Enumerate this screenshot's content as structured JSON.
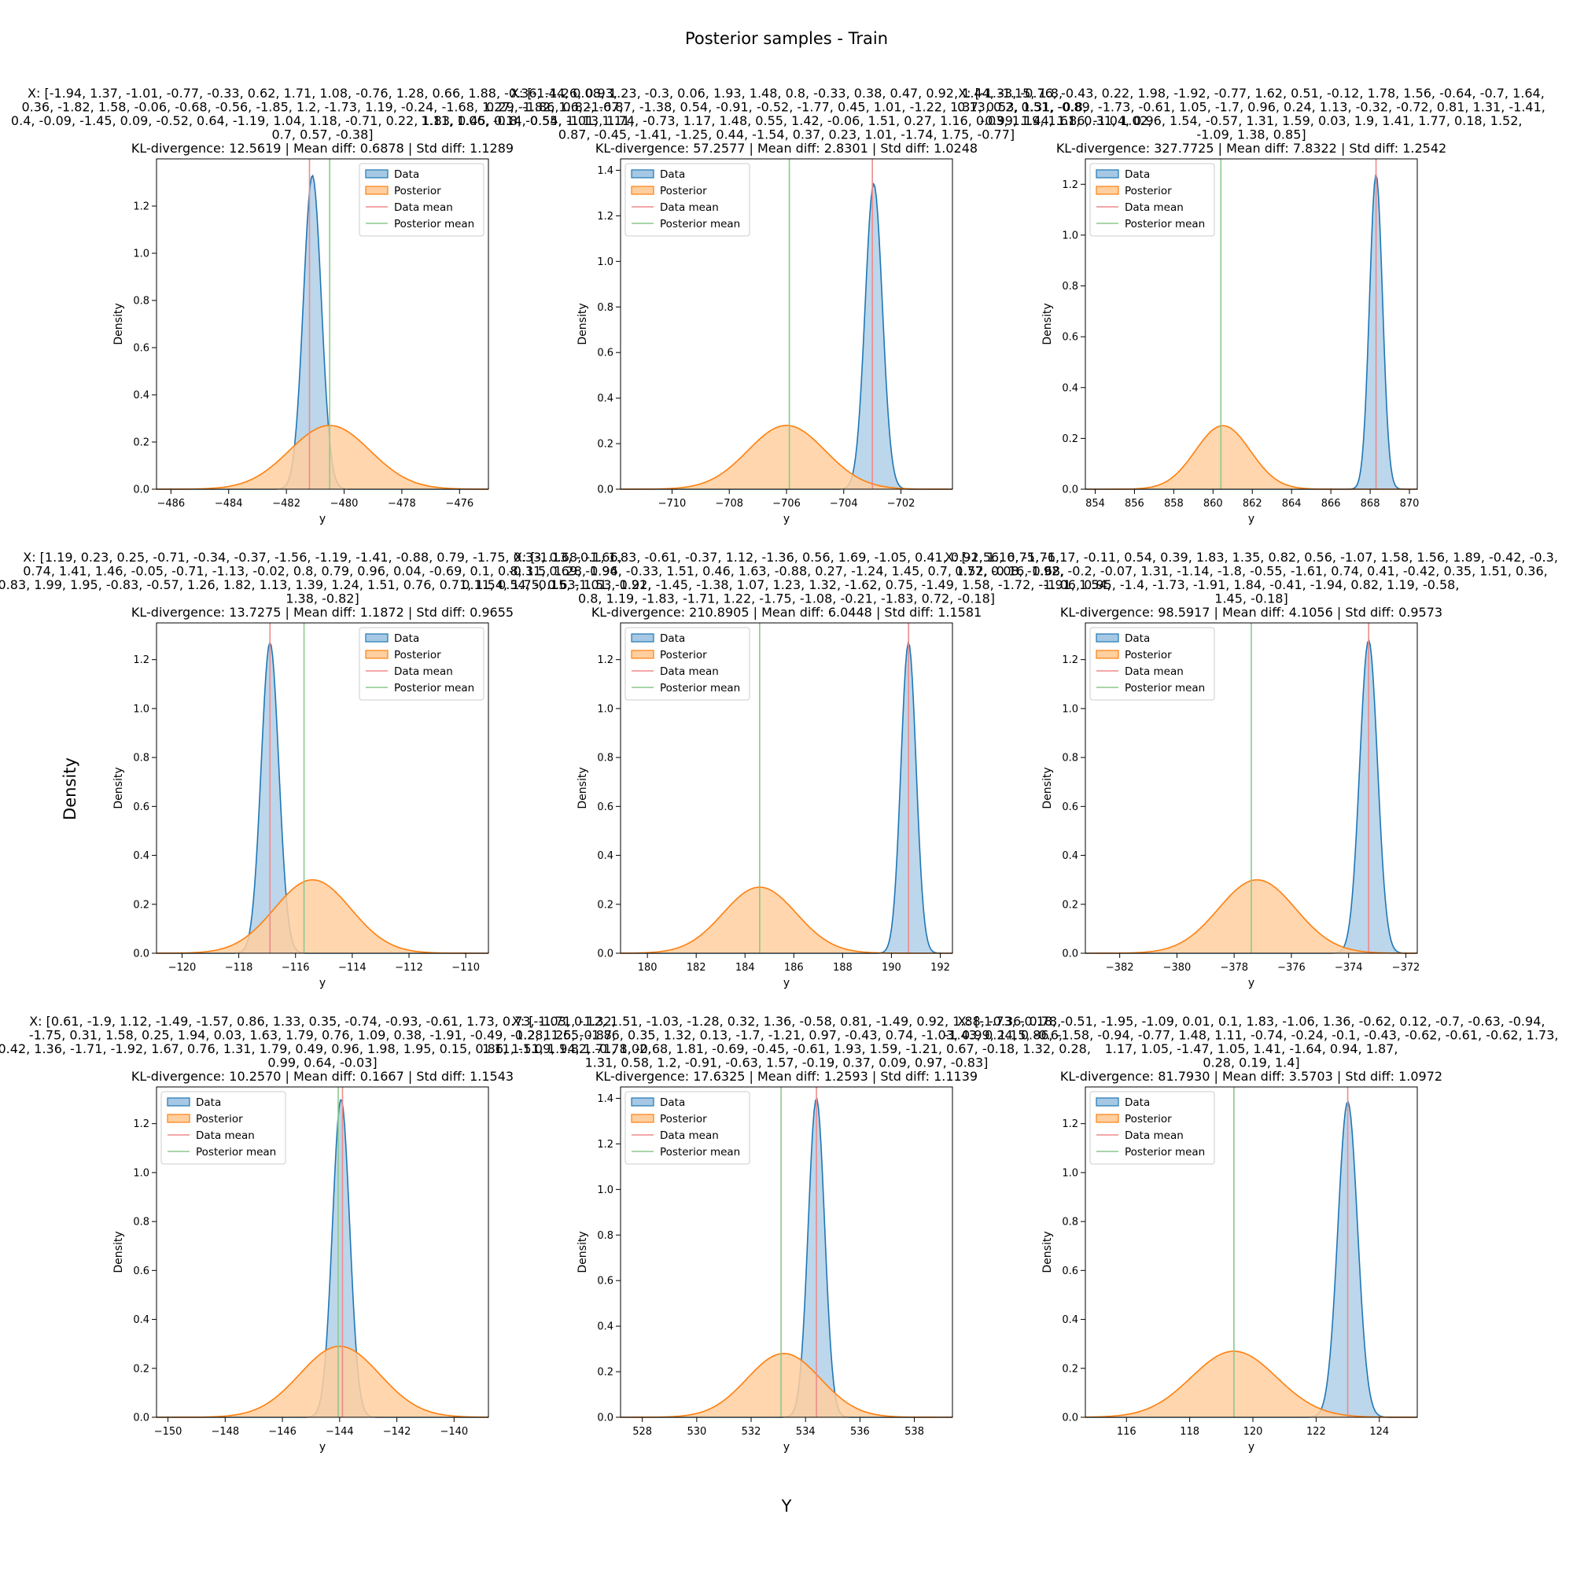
{
  "figure": {
    "suptitle": "Posterior samples - Train",
    "supxlabel": "Y",
    "supylabel": "Density"
  },
  "legend_labels": [
    "Data",
    "Posterior",
    "Data mean",
    "Posterior mean"
  ],
  "colors": {
    "data_line": "#1f77b4",
    "data_fill": "#a6c8e4",
    "posterior_line": "#ff7f0e",
    "posterior_fill": "#ffcf9f",
    "data_mean": "#ef8a8a",
    "posterior_mean": "#8cc98c"
  },
  "chart_data": [
    {
      "type": "area",
      "title_lines": [
        "X: [-1.94, 1.37, -1.01, -0.77, -0.33, 0.62, 1.71, 1.08, -0.76, 1.28, 0.66, 1.88, -0.36, -1.26, 0.93,",
        "0.36, -1.82, 1.58, -0.06, -0.68, -0.56, -1.85, 1.2, -1.73, 1.19, -0.24, -1.68, 1.27, -1.82, 1.6, -1.67,",
        "0.4, -0.09, -1.45, 0.09, -0.52, 0.64, -1.19, 1.04, 1.18, -0.71, 0.22, 1.83, 0.45, 0.14, 0.55, 1.01, 1.11,",
        "0.7, 0.57, -0.38]",
        "KL-divergence: 12.5619 | Mean diff: 0.6878 | Std diff: 1.1289"
      ],
      "xlabel": "y",
      "ylabel": "Density",
      "xlim": [
        -486.5,
        -475
      ],
      "ylim": [
        0,
        1.4
      ],
      "xticks": [
        -486,
        -484,
        -482,
        -480,
        -478,
        -476
      ],
      "yticks": [
        0.0,
        0.2,
        0.4,
        0.6,
        0.8,
        1.0,
        1.2
      ],
      "data_mean": -481.2,
      "posterior_mean": -480.5,
      "series": [
        {
          "name": "Data",
          "mu": -481.1,
          "sigma": 0.31,
          "peak": 1.33
        },
        {
          "name": "Posterior",
          "mu": -480.5,
          "sigma": 1.4,
          "peak": 0.27
        }
      ]
    },
    {
      "type": "area",
      "title_lines": [
        "X: [-1.44, 0.08, 1.23, -0.3, 0.06, 1.93, 1.48, 0.8, -0.33, 0.38, 0.47, 0.92, 1.44, -1.15, 1.8,",
        "0.29, -1.86, 0.82, -0.87, -1.38, 0.54, -0.91, -0.52, -1.77, 0.45, 1.01, -1.22, 1.37, 0.53, 1.31, -0.8,",
        "1.11, 1.06, -0.8, -0.54, -1.13, 1.74, -0.73, 1.17, 1.48, 0.55, 1.42, -0.06, 1.51, 0.27, 1.16, 0.03, 1.19, 1.61, 0.31, 1.02,",
        "0.87, -0.45, -1.41, -1.25, 0.44, -1.54, 0.37, 0.23, 1.01, -1.74, 1.75, -0.77]",
        "KL-divergence: 57.2577 | Mean diff: 2.8301 | Std diff: 1.0248"
      ],
      "xlabel": "y",
      "ylabel": "Density",
      "xlim": [
        -711.8,
        -700.2
      ],
      "ylim": [
        0,
        1.45
      ],
      "xticks": [
        -710,
        -708,
        -706,
        -704,
        -702
      ],
      "yticks": [
        0.0,
        0.2,
        0.4,
        0.6,
        0.8,
        1.0,
        1.2,
        1.4
      ],
      "data_mean": -703.0,
      "posterior_mean": -705.9,
      "series": [
        {
          "name": "Data",
          "mu": -702.95,
          "sigma": 0.3,
          "peak": 1.34
        },
        {
          "name": "Posterior",
          "mu": -706.0,
          "sigma": 1.35,
          "peak": 0.28
        }
      ]
    },
    {
      "type": "area",
      "title_lines": [
        "X: [-1.33, -0.76, -0.43, 0.22, 1.98, -1.92, -0.77, 1.62, 0.51, -0.12, 1.78, 1.56, -0.64, -0.7, 1.64,",
        "0.13, 0.2, 0.51, -0.89, -1.73, -0.61, 1.05, -1.7, 0.96, 0.24, 1.13, -0.32, -0.72, 0.81, 1.31, -1.41,",
        "-0.99, 1.44, 1.86, -1.04, 0.96, 1.54, -0.57, 1.31, 1.59, 0.03, 1.9, 1.41, 1.77, 0.18, 1.52,",
        "-1.09, 1.38, 0.85]",
        "KL-divergence: 327.7725 | Mean diff: 7.8322 | Std diff: 1.2542"
      ],
      "xlabel": "y",
      "ylabel": "Density",
      "xlim": [
        853.5,
        870.4
      ],
      "ylim": [
        0,
        1.3
      ],
      "xticks": [
        854,
        856,
        858,
        860,
        862,
        864,
        866,
        868,
        870
      ],
      "yticks": [
        0.0,
        0.2,
        0.4,
        0.6,
        0.8,
        1.0,
        1.2
      ],
      "data_mean": 868.3,
      "posterior_mean": 860.4,
      "series": [
        {
          "name": "Data",
          "mu": 868.3,
          "sigma": 0.33,
          "peak": 1.24
        },
        {
          "name": "Posterior",
          "mu": 860.5,
          "sigma": 1.4,
          "peak": 0.25
        }
      ]
    },
    {
      "type": "area",
      "title_lines": [
        "X: [1.19, 0.23, 0.25, -0.71, -0.34, -0.37, -1.56, -1.19, -1.41, -0.88, 0.79, -1.75, 0.33, 0.68, -1.66,",
        "0.74, 1.41, 1.46, -0.05, -0.71, -1.13, -0.02, 0.8, 0.79, 0.96, 0.04, -0.69, 0.1, 0.8, 1.5, 1.28, 0.94,",
        "-0.83, 1.99, 1.95, -0.83, -0.57, 1.26, 1.82, 1.13, 1.39, 1.24, 1.51, 0.76, 0.71, 1.54, 1.75, 0.63, 1.53, 0.21,",
        "1.38, -0.82]",
        "KL-divergence: 13.7275 | Mean diff: 1.1872 | Std diff: 0.9655"
      ],
      "xlabel": "y",
      "ylabel": "Density",
      "xlim": [
        -120.9,
        -109.2
      ],
      "ylim": [
        0,
        1.35
      ],
      "xticks": [
        -120,
        -118,
        -116,
        -114,
        -112,
        -110
      ],
      "yticks": [
        0.0,
        0.2,
        0.4,
        0.6,
        0.8,
        1.0,
        1.2
      ],
      "data_mean": -116.9,
      "posterior_mean": -115.7,
      "series": [
        {
          "name": "Data",
          "mu": -116.9,
          "sigma": 0.31,
          "peak": 1.27
        },
        {
          "name": "Posterior",
          "mu": -115.4,
          "sigma": 1.35,
          "peak": 0.3
        }
      ]
    },
    {
      "type": "area",
      "title_lines": [
        "X: [-1.13, -0.1, 1.83, -0.61, -0.37, 1.12, -1.36, 0.56, 1.69, -1.05, 0.41, 0.92, 1.16, -1.76,",
        "-0.31, 0.69, -1.96, -0.33, 1.51, 0.46, 1.63, -0.88, 0.27, -1.24, 1.45, 0.7, 1.52, -0.16, 0.68,",
        "0.11, 0.54, -0.15, -1.01, -1.92, -1.45, -1.38, 1.07, 1.23, 1.32, -1.62, 0.75, -1.49, 1.58, -1.72, -1.91, 1.54,",
        "0.8, 1.19, -1.83, -1.71, 1.22, -1.75, -1.08, -0.21, -1.83, 0.72, -0.18]",
        "KL-divergence: 210.8905 | Mean diff: 6.0448 | Std diff: 1.1581"
      ],
      "xlabel": "y",
      "ylabel": "Density",
      "xlim": [
        178.9,
        192.5
      ],
      "ylim": [
        0,
        1.35
      ],
      "xticks": [
        180,
        182,
        184,
        186,
        188,
        190,
        192
      ],
      "yticks": [
        0.0,
        0.2,
        0.4,
        0.6,
        0.8,
        1.0,
        1.2
      ],
      "data_mean": 190.7,
      "posterior_mean": 184.6,
      "series": [
        {
          "name": "Data",
          "mu": 190.7,
          "sigma": 0.31,
          "peak": 1.27
        },
        {
          "name": "Posterior",
          "mu": 184.6,
          "sigma": 1.5,
          "peak": 0.27
        }
      ]
    },
    {
      "type": "area",
      "title_lines": [
        "X: [-1.56, 0.75, -1.17, -0.11, 0.54, 0.39, 1.83, 1.35, 0.82, 0.56, -1.07, 1.58, 1.56, 1.89, -0.42, -0.3,",
        "0.77, 0.08, -1.92, -0.2, -0.07, 1.31, -1.14, -1.8, -0.55, -1.61, 0.74, 0.41, -0.42, 0.35, 1.51, 0.36,",
        "-1.06, 0.95, -1.4, -1.73, -1.91, 1.84, -0.41, -1.94, 0.82, 1.19, -0.58,",
        "1.45, -0.18]",
        "KL-divergence: 98.5917 | Mean diff: 4.1056 | Std diff: 0.9573"
      ],
      "xlabel": "y",
      "ylabel": "Density",
      "xlim": [
        -383.2,
        -371.6
      ],
      "ylim": [
        0,
        1.35
      ],
      "xticks": [
        -382,
        -380,
        -378,
        -376,
        -374,
        -372
      ],
      "yticks": [
        0.0,
        0.2,
        0.4,
        0.6,
        0.8,
        1.0,
        1.2
      ],
      "data_mean": -373.3,
      "posterior_mean": -377.4,
      "series": [
        {
          "name": "Data",
          "mu": -373.3,
          "sigma": 0.31,
          "peak": 1.28
        },
        {
          "name": "Posterior",
          "mu": -377.2,
          "sigma": 1.35,
          "peak": 0.3
        }
      ]
    },
    {
      "type": "area",
      "title_lines": [
        "X: [0.61, -1.9, 1.12, -1.49, -1.57, 0.86, 1.33, 0.35, -0.74, -0.93, -0.61, 1.73, 0.73, -1.71, -1.32,",
        "-1.75, 0.31, 1.58, 0.25, 1.94, 0.03, 1.63, 1.79, 0.76, 1.09, 0.38, -1.91, -0.49, -1.2, 1.25, -0.87,",
        "-0.42, 1.36, -1.71, -1.92, 1.67, 0.76, 1.31, 1.79, 0.49, 0.96, 1.98, 1.95, 0.15, 0.86, 1.51, 1.94, 1.71, 1.02,",
        "0.99, 0.64, -0.03]",
        "KL-divergence: 10.2570 | Mean diff: 0.1667 | Std diff: 1.1543"
      ],
      "xlabel": "y",
      "ylabel": "Density",
      "xlim": [
        -150.4,
        -138.8
      ],
      "ylim": [
        0,
        1.35
      ],
      "xticks": [
        -150,
        -148,
        -146,
        -144,
        -142,
        -140
      ],
      "yticks": [
        0.0,
        0.2,
        0.4,
        0.6,
        0.8,
        1.0,
        1.2
      ],
      "data_mean": -143.9,
      "posterior_mean": -144.05,
      "series": [
        {
          "name": "Data",
          "mu": -143.95,
          "sigma": 0.3,
          "peak": 1.3
        },
        {
          "name": "Posterior",
          "mu": -144.0,
          "sigma": 1.4,
          "peak": 0.29
        }
      ]
    },
    {
      "type": "area",
      "title_lines": [
        "X: [-1.03, 0.12, 1.51, -1.03, -1.28, 0.32, 1.36, -0.58, 0.81, -1.49, 0.92, 1.88, -0.36, 0.78,",
        "-0.28, 1.65, -1.86, 0.35, 1.32, 0.13, -1.7, -1.21, 0.97, -0.43, 0.74, -1.03, 0.99, 1.15, -0.6,",
        "1.11, -1.09, 1.82, -0.78, -0.68, 1.81, -0.69, -0.45, -0.61, 1.93, 1.59, -1.21, 0.67, -0.18, 1.32, 0.28,",
        "1.31, 0.58, 1.2, -0.91, -0.63, 1.57, -0.19, 0.37, 0.09, 0.97, -0.83]",
        "KL-divergence: 17.6325 | Mean diff: 1.2593 | Std diff: 1.1139"
      ],
      "xlabel": "y",
      "ylabel": "Density",
      "xlim": [
        527.2,
        539.4
      ],
      "ylim": [
        0,
        1.45
      ],
      "xticks": [
        528,
        530,
        532,
        534,
        536,
        538
      ],
      "yticks": [
        0.0,
        0.2,
        0.4,
        0.6,
        0.8,
        1.0,
        1.2,
        1.4
      ],
      "data_mean": 534.4,
      "posterior_mean": 533.1,
      "series": [
        {
          "name": "Data",
          "mu": 534.4,
          "sigma": 0.3,
          "peak": 1.4
        },
        {
          "name": "Posterior",
          "mu": 533.2,
          "sigma": 1.35,
          "peak": 0.28
        }
      ]
    },
    {
      "type": "area",
      "title_lines": [
        "X: [-1.73, -0.18, -0.51, -1.95, -1.09, 0.01, 0.1, 1.83, -1.06, 1.36, -0.62, 0.12, -0.7, -0.63, -0.94,",
        "-1.43, 0.24, 0.86, -1.58, -0.94, -0.77, 1.48, 1.11, -0.74, -0.24, -0.1, -0.43, -0.62, -0.61, -0.62, 1.73,",
        "1.17, 1.05, -1.47, 1.05, 1.41, -1.64, 0.94, 1.87,",
        "0.28, 0.19, 1.4]",
        "KL-divergence: 81.7930 | Mean diff: 3.5703 | Std diff: 1.0972"
      ],
      "xlabel": "y",
      "ylabel": "Density",
      "xlim": [
        114.7,
        125.2
      ],
      "ylim": [
        0,
        1.35
      ],
      "xticks": [
        116,
        118,
        120,
        122,
        124
      ],
      "yticks": [
        0.0,
        0.2,
        0.4,
        0.6,
        0.8,
        1.0,
        1.2
      ],
      "data_mean": 123.0,
      "posterior_mean": 119.4,
      "series": [
        {
          "name": "Data",
          "mu": 123.0,
          "sigma": 0.31,
          "peak": 1.29
        },
        {
          "name": "Posterior",
          "mu": 119.4,
          "sigma": 1.35,
          "peak": 0.27
        }
      ]
    }
  ]
}
